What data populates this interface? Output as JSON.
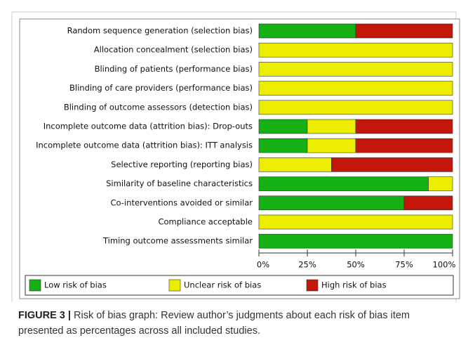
{
  "chart_data": {
    "type": "stacked_barh",
    "categories": [
      "Random sequence generation (selection bias)",
      "Allocation concealment (selection bias)",
      "Blinding of patients (performance bias)",
      "Blinding of care providers (performance bias)",
      "Blinding of outcome assessors (detection bias)",
      "Incomplete outcome data (attrition bias): Drop-outs",
      "Incomplete outcome data (attrition bias): ITT analysis",
      "Selective reporting (reporting bias)",
      "Similarity of baseline characteristics",
      "Co-interventions avoided or similar",
      "Compliance acceptable",
      "Timing outcome assessments similar"
    ],
    "series": [
      {
        "name": "Low risk of bias",
        "color": "#14b014",
        "values": [
          50,
          0,
          0,
          0,
          0,
          25,
          25,
          0,
          87.5,
          75,
          0,
          100
        ]
      },
      {
        "name": "Unclear risk of bias",
        "color": "#eded00",
        "values": [
          0,
          100,
          100,
          100,
          100,
          25,
          25,
          37.5,
          12.5,
          0,
          100,
          0
        ]
      },
      {
        "name": "High risk of bias",
        "color": "#c4170c",
        "values": [
          50,
          0,
          0,
          0,
          0,
          50,
          50,
          62.5,
          0,
          25,
          0,
          0
        ]
      }
    ],
    "xlim": [
      0,
      100
    ],
    "xticks": [
      {
        "value": 0,
        "label": "0%"
      },
      {
        "value": 25,
        "label": "25%"
      },
      {
        "value": 50,
        "label": "50%"
      },
      {
        "value": 75,
        "label": "75%"
      },
      {
        "value": 100,
        "label": "100%"
      }
    ],
    "legend": "bottom"
  },
  "caption_label": "FIGURE 3 |",
  "caption": "Risk of bias graph: Review author’s judgments about each risk of bias item presented as percentages across all included studies."
}
